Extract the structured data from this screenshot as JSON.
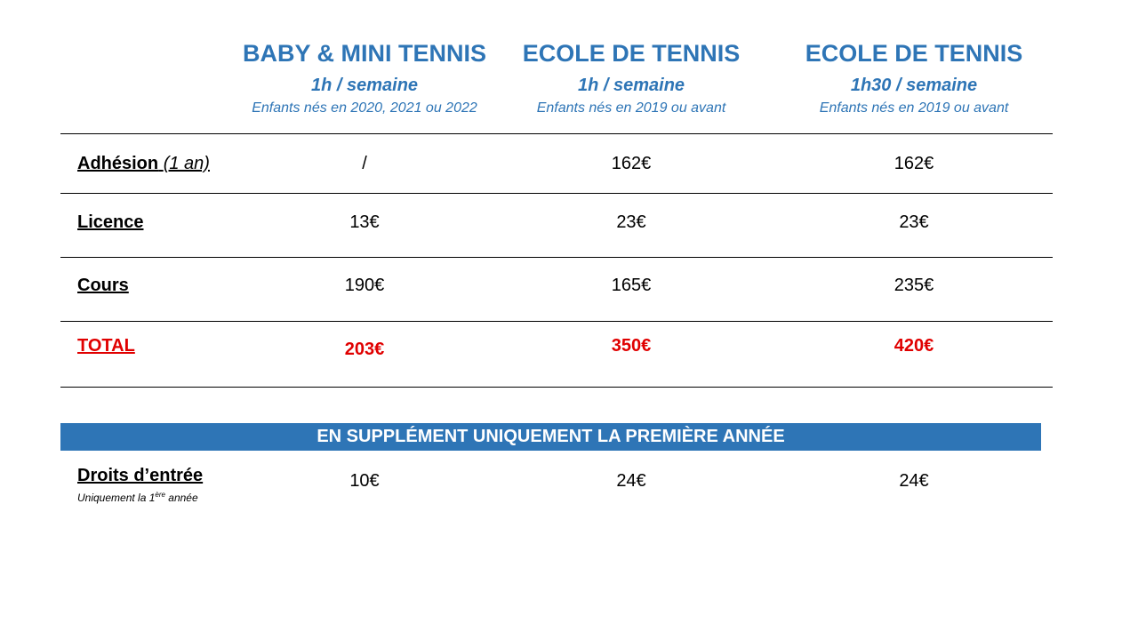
{
  "columns": [
    {
      "title": "BABY & MINI TENNIS",
      "frequency": "1h / semaine",
      "eligibility": "Enfants nés en 2020, 2021 ou 2022"
    },
    {
      "title": "ECOLE DE TENNIS",
      "frequency": "1h / semaine",
      "eligibility": "Enfants nés en 2019 ou avant"
    },
    {
      "title": "ECOLE DE TENNIS",
      "frequency": "1h30 / semaine",
      "eligibility": "Enfants nés en 2019 ou avant"
    }
  ],
  "rows": {
    "adhesion": {
      "label": "Adhésion",
      "note": "(1 an)",
      "values": [
        "/",
        "162€",
        "162€"
      ]
    },
    "licence": {
      "label": "Licence",
      "values": [
        "13€",
        "23€",
        "23€"
      ]
    },
    "cours": {
      "label": "Cours",
      "values": [
        "190€",
        "165€",
        "235€"
      ]
    },
    "total": {
      "label": "TOTAL",
      "values": [
        "203€",
        "350€",
        "420€"
      ]
    }
  },
  "supplement": {
    "banner": "EN SUPPLÉMENT UNIQUEMENT LA PREMIÈRE ANNÉE",
    "label": "Droits d’entrée",
    "note_prefix": "Uniquement la 1",
    "note_sup": "ère",
    "note_suffix": " année",
    "values": [
      "10€",
      "24€",
      "24€"
    ]
  },
  "colors": {
    "accent": "#2e75b6",
    "total": "#e00000"
  }
}
